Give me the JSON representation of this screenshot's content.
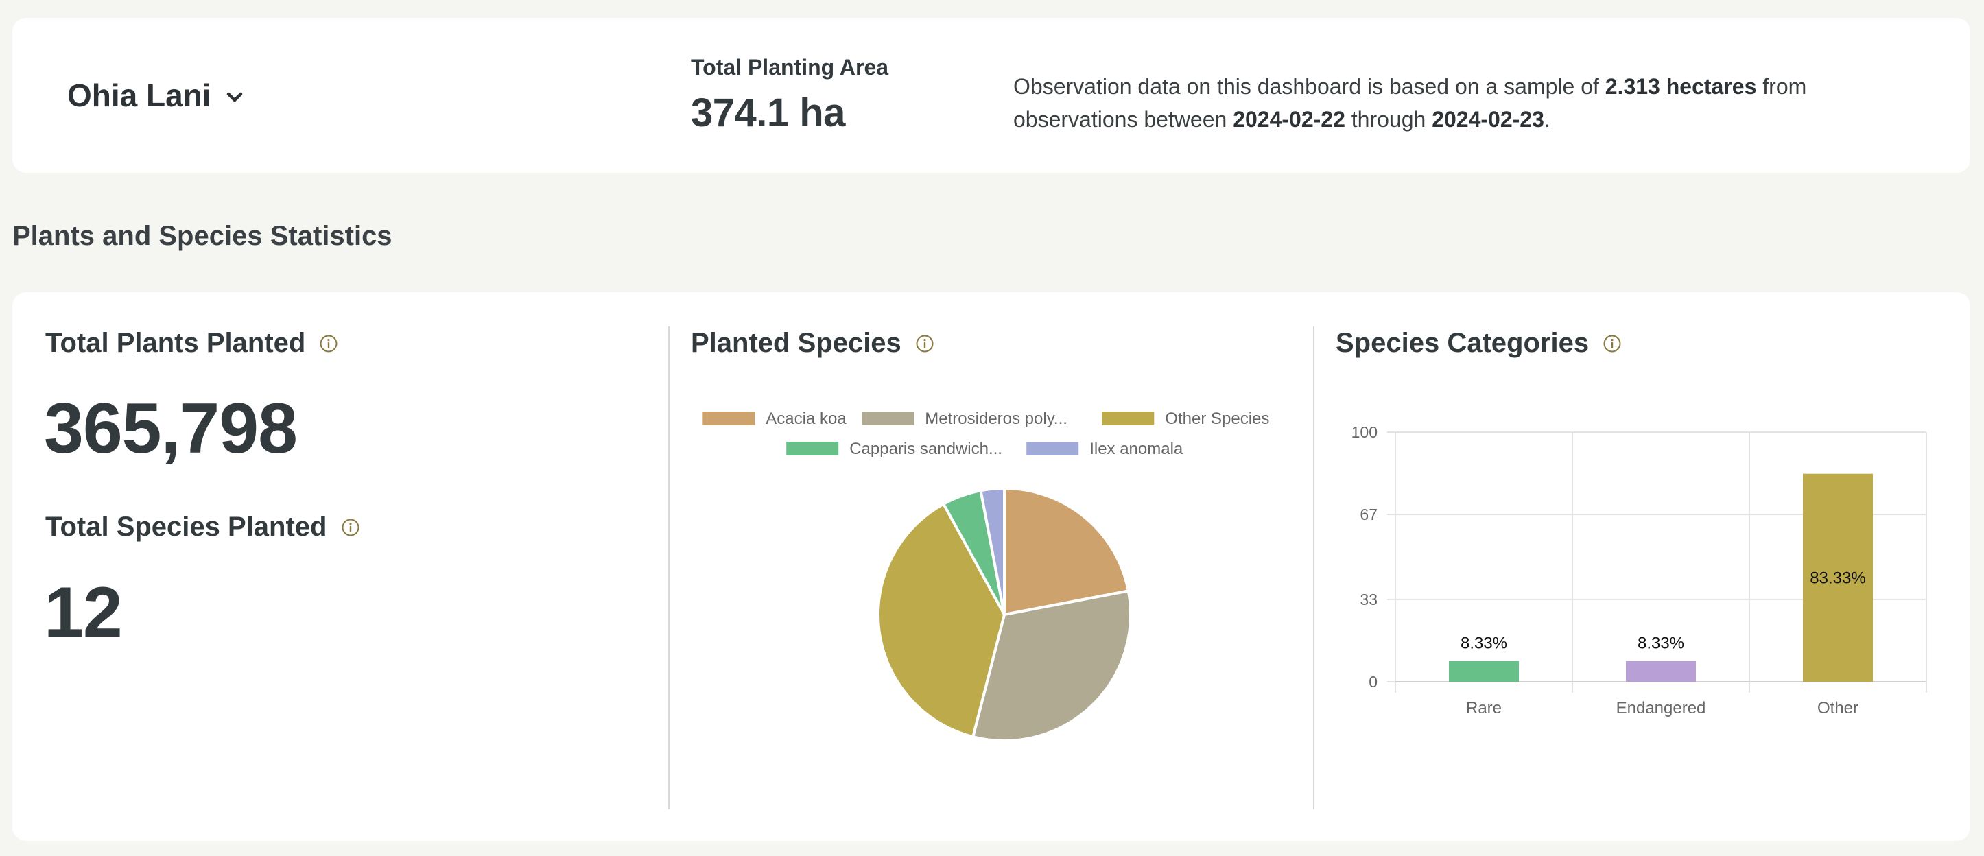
{
  "header": {
    "site_name": "Ohia Lani",
    "area_label": "Total Planting Area",
    "area_value": "374.1 ha",
    "obs_prefix": "Observation data on this dashboard is based on a sample of ",
    "obs_hectares": "2.313 hectares",
    "obs_mid": " from observations between ",
    "obs_start": "2024-02-22",
    "obs_through": " through ",
    "obs_end": "2024-02-23",
    "obs_suffix": "."
  },
  "section": {
    "title": "Plants and Species Statistics"
  },
  "plants": {
    "total_planted_label": "Total Plants Planted",
    "total_planted_value": "365,798",
    "species_planted_label": "Total Species Planted",
    "species_planted_value": "12"
  },
  "species_panel": {
    "title": "Planted Species"
  },
  "categories_panel": {
    "title": "Species Categories"
  },
  "icons": {
    "info": "info-circle-icon",
    "dropdown": "chevron-down-icon"
  },
  "chart_data": [
    {
      "type": "pie",
      "title": "",
      "legend_position": "top",
      "categories": [
        "Acacia koa",
        "Metrosideros poly...",
        "Other Species",
        "Capparis sandwich...",
        "Ilex anomala"
      ],
      "values": [
        22,
        32,
        38,
        5,
        3
      ],
      "colors": [
        "#cda26d",
        "#b0aa93",
        "#bdab4b",
        "#67c088",
        "#a1a9d8"
      ]
    },
    {
      "type": "bar",
      "title": "",
      "categories": [
        "Rare",
        "Endangered",
        "Other"
      ],
      "values": [
        8.33,
        8.33,
        83.33
      ],
      "data_labels": [
        "8.33%",
        "8.33%",
        "83.33%"
      ],
      "colors": [
        "#67c088",
        "#b89fd6",
        "#bdab4b"
      ],
      "ylim": [
        0,
        100
      ],
      "yticks": [
        0,
        33,
        67,
        100
      ],
      "grid": true
    }
  ]
}
